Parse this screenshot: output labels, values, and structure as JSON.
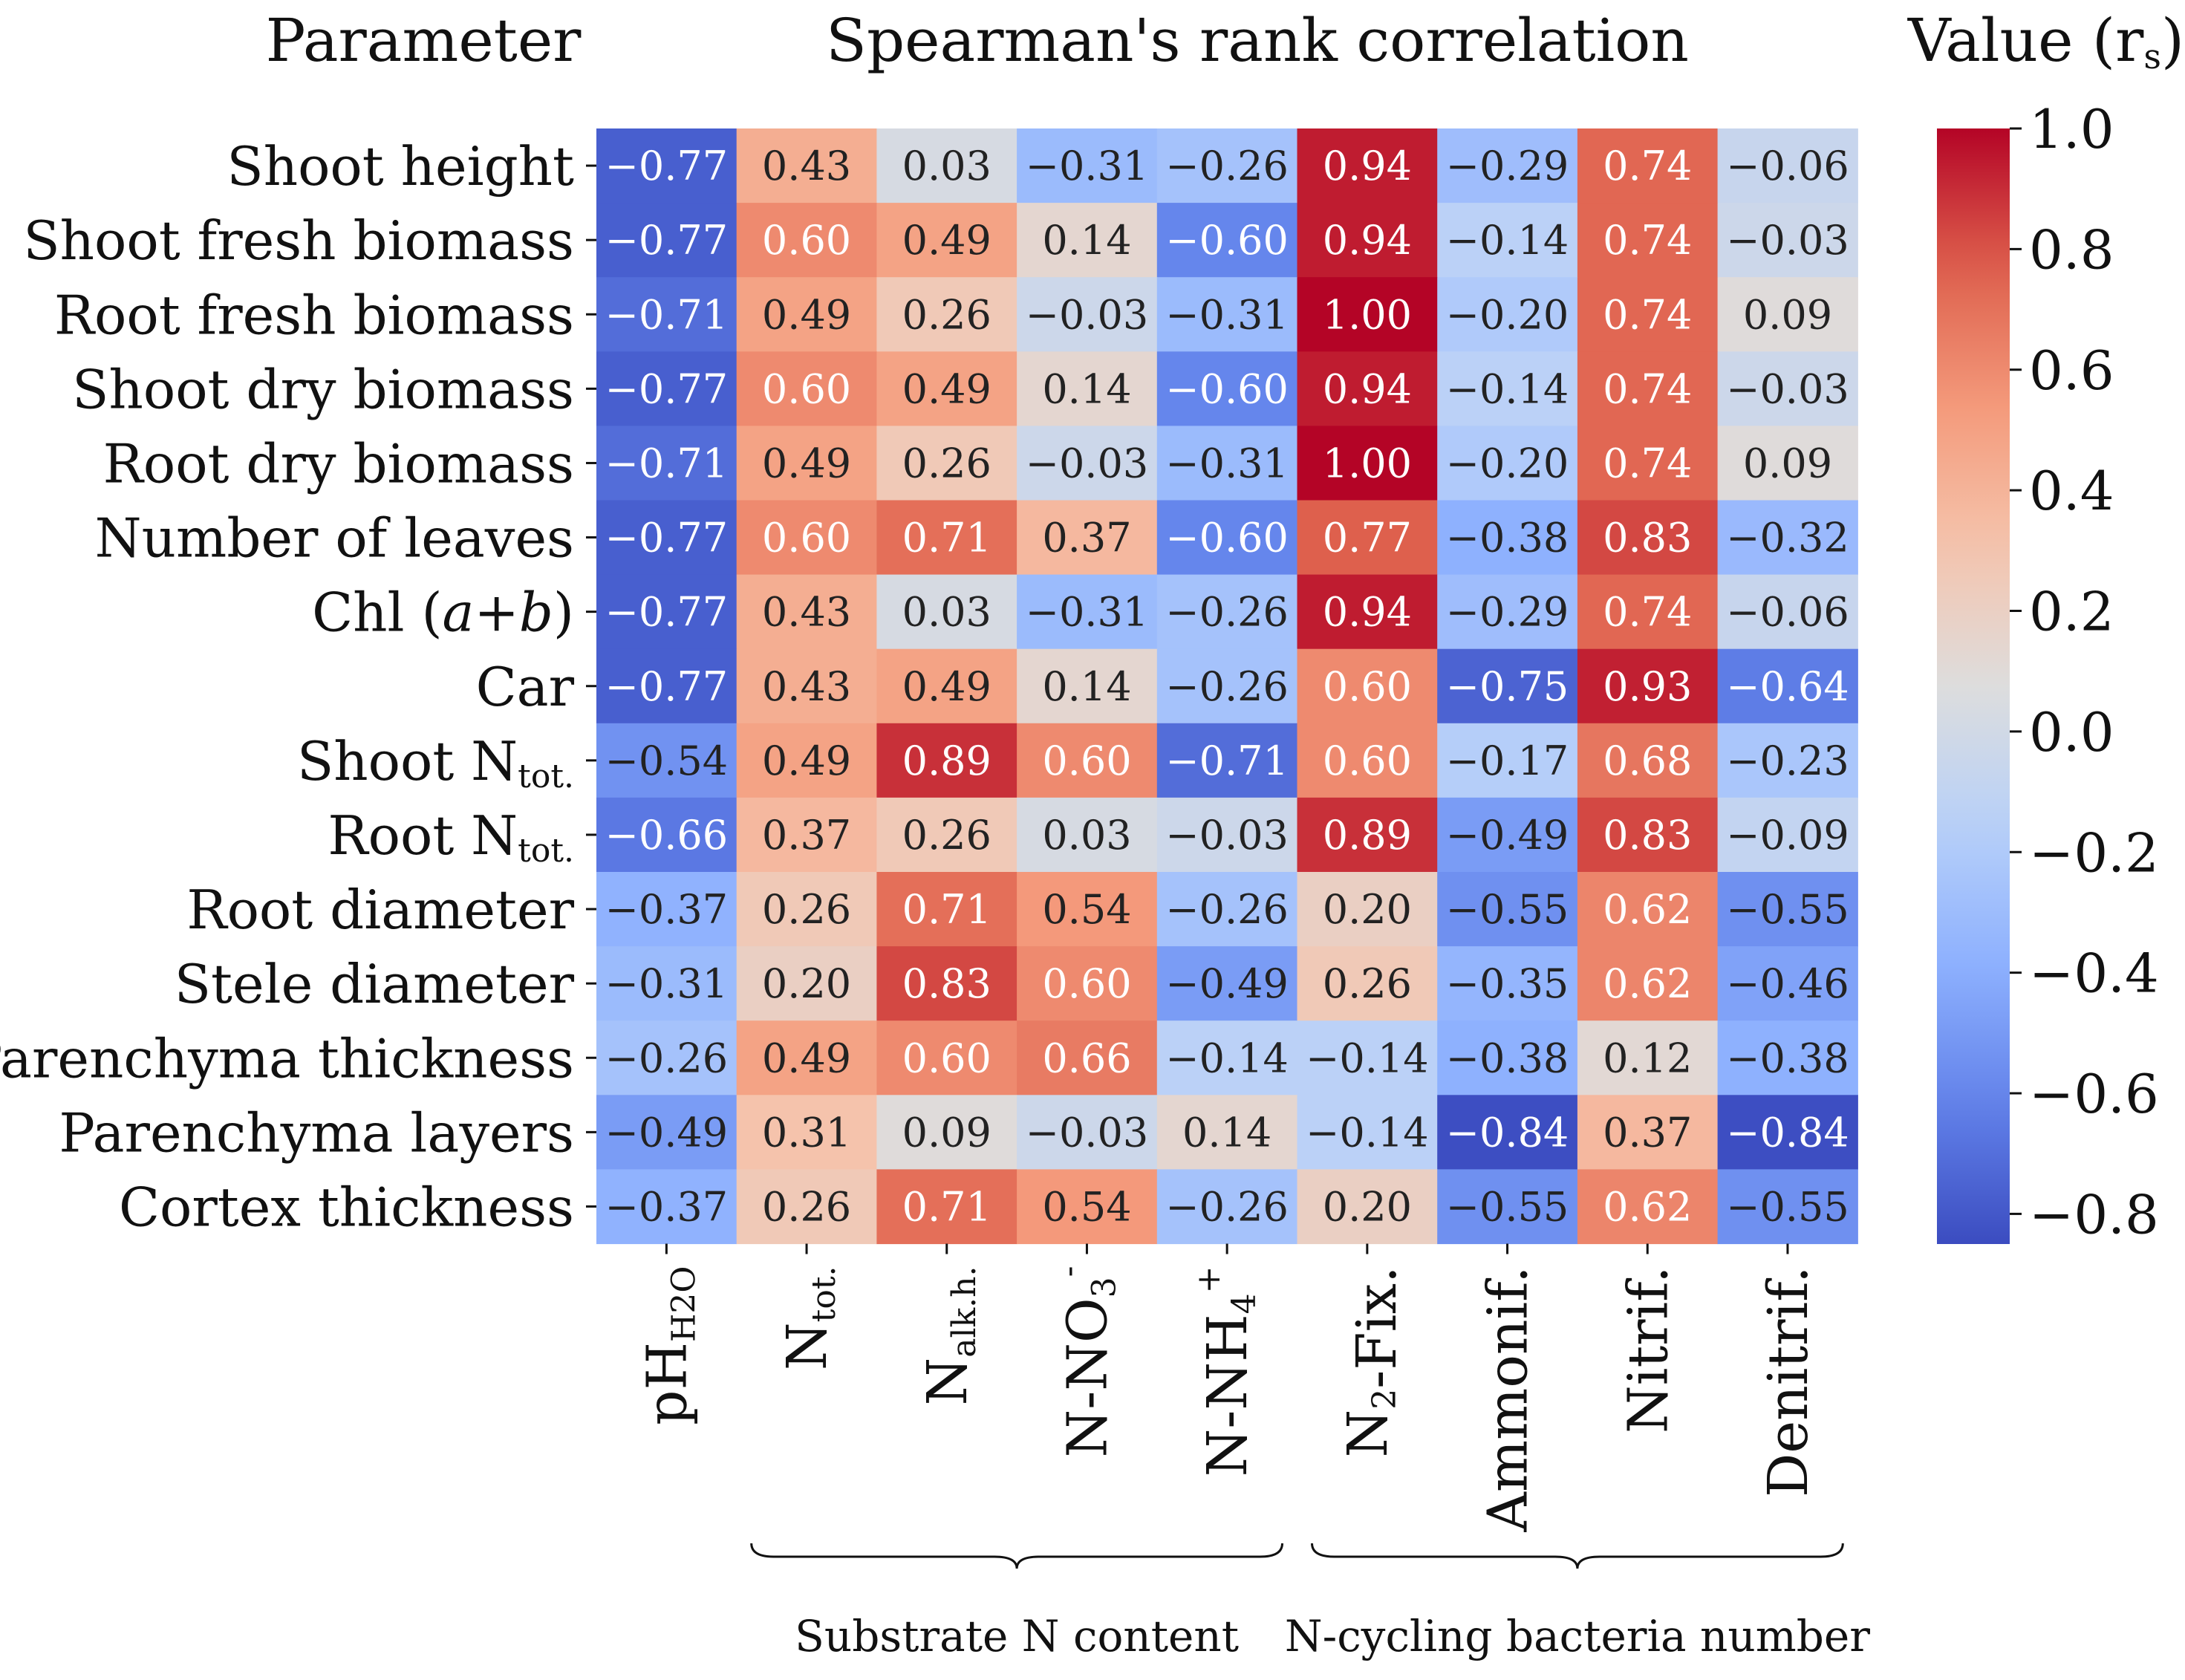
{
  "chart_data": {
    "type": "heatmap",
    "title": "Spearman's rank correlation",
    "row_header": "Parameter",
    "colorbar_title": "Value (r",
    "colorbar_title_sub": "s",
    "colorbar_title_close": ")",
    "vmin": -0.85,
    "vmax": 1.0,
    "colorbar_ticks": [
      "1.0",
      "0.8",
      "0.6",
      "0.4",
      "0.2",
      "0.0",
      "−0.2",
      "−0.4",
      "−0.6",
      "−0.8"
    ],
    "colorbar_tick_values": [
      1.0,
      0.8,
      0.6,
      0.4,
      0.2,
      0.0,
      -0.2,
      -0.4,
      -0.6,
      -0.8
    ],
    "rows": [
      "Shoot height",
      "Shoot fresh biomass",
      "Root fresh biomass",
      "Shoot dry biomass",
      "Root dry biomass",
      "Number of leaves",
      "Chl (a+b)",
      "Car",
      "Shoot Ntot.",
      "Root Ntot.",
      "Root diameter",
      "Stele diameter",
      "Parenchyma thickness",
      "Parenchyma layers",
      "Cortex thickness"
    ],
    "row_label_parts": [
      [
        {
          "t": "Shoot height"
        }
      ],
      [
        {
          "t": "Shoot fresh biomass"
        }
      ],
      [
        {
          "t": "Root fresh biomass"
        }
      ],
      [
        {
          "t": "Shoot dry biomass"
        }
      ],
      [
        {
          "t": "Root dry biomass"
        }
      ],
      [
        {
          "t": "Number of leaves"
        }
      ],
      [
        {
          "t": "Chl ("
        },
        {
          "t": "a",
          "i": true
        },
        {
          "t": "+"
        },
        {
          "t": "b",
          "i": true
        },
        {
          "t": ")"
        }
      ],
      [
        {
          "t": "Car"
        }
      ],
      [
        {
          "t": "Shoot N"
        },
        {
          "t": "tot.",
          "sub": true
        }
      ],
      [
        {
          "t": "Root N"
        },
        {
          "t": "tot.",
          "sub": true
        }
      ],
      [
        {
          "t": "Root diameter"
        }
      ],
      [
        {
          "t": "Stele diameter"
        }
      ],
      [
        {
          "t": "Parenchyma thickness"
        }
      ],
      [
        {
          "t": "Parenchyma layers"
        }
      ],
      [
        {
          "t": "Cortex thickness"
        }
      ]
    ],
    "columns": [
      "pHH2O",
      "Ntot.",
      "Nalk.h.",
      "N-NO3-",
      "N-NH4+",
      "N2-Fix.",
      "Ammonif.",
      "Nitrif.",
      "Denitrif."
    ],
    "column_label_parts": [
      [
        {
          "t": "pH"
        },
        {
          "t": "H2O",
          "sub": true
        }
      ],
      [
        {
          "t": "N"
        },
        {
          "t": "tot.",
          "sub": true
        }
      ],
      [
        {
          "t": "N"
        },
        {
          "t": "alk.h.",
          "sub": true
        }
      ],
      [
        {
          "t": "N-NO"
        },
        {
          "t": "3",
          "sub": true
        },
        {
          "t": "-",
          "sup": true
        }
      ],
      [
        {
          "t": "N-NH"
        },
        {
          "t": "4",
          "sub": true
        },
        {
          "t": "+",
          "sup": true
        }
      ],
      [
        {
          "t": "N"
        },
        {
          "t": "2",
          "sub": true
        },
        {
          "t": "-Fix."
        }
      ],
      [
        {
          "t": "Ammonif."
        }
      ],
      [
        {
          "t": "Nitrif."
        }
      ],
      [
        {
          "t": "Denitrif."
        }
      ]
    ],
    "values": [
      [
        -0.77,
        0.43,
        0.03,
        -0.31,
        -0.26,
        0.94,
        -0.29,
        0.74,
        -0.06
      ],
      [
        -0.77,
        0.6,
        0.49,
        0.14,
        -0.6,
        0.94,
        -0.14,
        0.74,
        -0.03
      ],
      [
        -0.71,
        0.49,
        0.26,
        -0.03,
        -0.31,
        1.0,
        -0.2,
        0.74,
        0.09
      ],
      [
        -0.77,
        0.6,
        0.49,
        0.14,
        -0.6,
        0.94,
        -0.14,
        0.74,
        -0.03
      ],
      [
        -0.71,
        0.49,
        0.26,
        -0.03,
        -0.31,
        1.0,
        -0.2,
        0.74,
        0.09
      ],
      [
        -0.77,
        0.6,
        0.71,
        0.37,
        -0.6,
        0.77,
        -0.38,
        0.83,
        -0.32
      ],
      [
        -0.77,
        0.43,
        0.03,
        -0.31,
        -0.26,
        0.94,
        -0.29,
        0.74,
        -0.06
      ],
      [
        -0.77,
        0.43,
        0.49,
        0.14,
        -0.26,
        0.6,
        -0.75,
        0.93,
        -0.64
      ],
      [
        -0.54,
        0.49,
        0.89,
        0.6,
        -0.71,
        0.6,
        -0.17,
        0.68,
        -0.23
      ],
      [
        -0.66,
        0.37,
        0.26,
        0.03,
        -0.03,
        0.89,
        -0.49,
        0.83,
        -0.09
      ],
      [
        -0.37,
        0.26,
        0.71,
        0.54,
        -0.26,
        0.2,
        -0.55,
        0.62,
        -0.55
      ],
      [
        -0.31,
        0.2,
        0.83,
        0.6,
        -0.49,
        0.26,
        -0.35,
        0.62,
        -0.46
      ],
      [
        -0.26,
        0.49,
        0.6,
        0.66,
        -0.14,
        -0.14,
        -0.38,
        0.12,
        -0.38
      ],
      [
        -0.49,
        0.31,
        0.09,
        -0.03,
        0.14,
        -0.14,
        -0.84,
        0.37,
        -0.84
      ],
      [
        -0.37,
        0.26,
        0.71,
        0.54,
        -0.26,
        0.2,
        -0.55,
        0.62,
        -0.55
      ]
    ],
    "groups": [
      {
        "label": "Substrate N content",
        "from": 1,
        "to": 4
      },
      {
        "label": "N-cycling bacteria number",
        "from": 5,
        "to": 8
      }
    ]
  }
}
